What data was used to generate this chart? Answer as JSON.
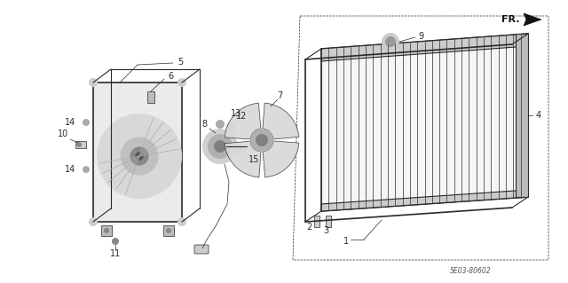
{
  "bg_color": "#ffffff",
  "line_color": "#2a2a2a",
  "fig_width": 6.4,
  "fig_height": 3.19,
  "dpi": 100,
  "diagram_code": "5E03-80602",
  "fr_label": "FR."
}
